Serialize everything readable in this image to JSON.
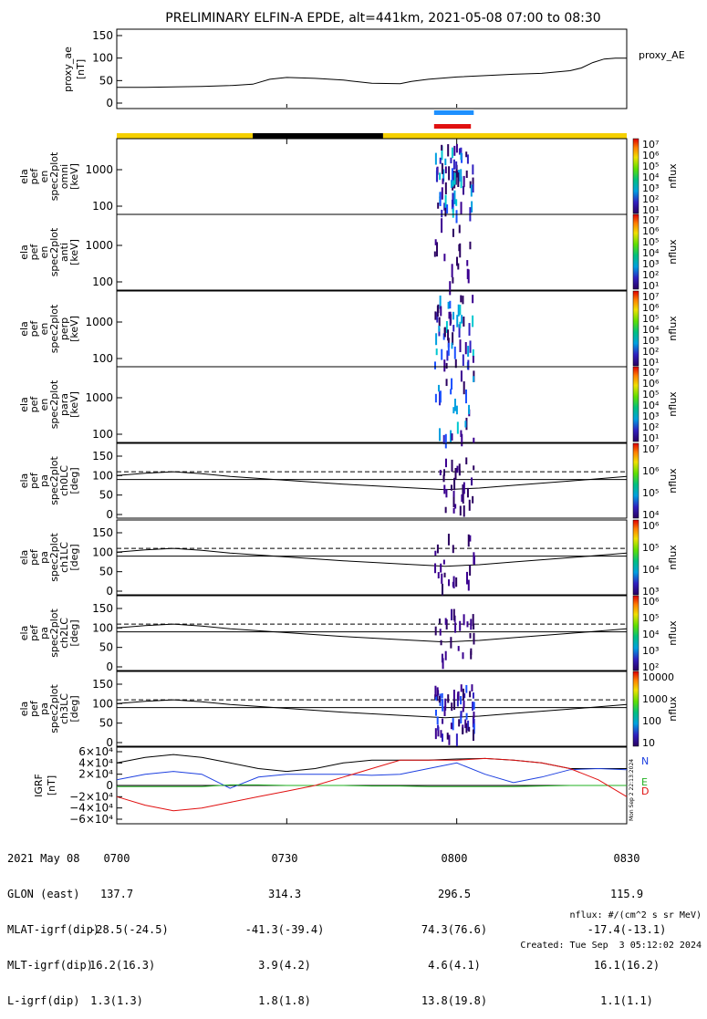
{
  "title": "PRELIMINARY ELFIN-A EPDE, alt=441km, 2021-05-08 07:00 to 08:30",
  "proxy_panel": {
    "ylabel_line1": "proxy_ae",
    "ylabel_line2": "[nT]",
    "legend": "proxy_AE",
    "yticks": [
      "150",
      "100",
      "50",
      "0"
    ],
    "ylim": [
      0,
      150
    ]
  },
  "spectra": [
    {
      "label": [
        "ela",
        "pef",
        "en",
        "spec2plot",
        "omni",
        "[keV]"
      ],
      "yticks": [
        "1000",
        "100"
      ]
    },
    {
      "label": [
        "ela",
        "pef",
        "en",
        "spec2plot",
        "anti",
        "[keV]"
      ],
      "yticks": [
        "1000",
        "100"
      ]
    },
    {
      "label": [
        "ela",
        "pef",
        "en",
        "spec2plot",
        "perp",
        "[keV]"
      ],
      "yticks": [
        "1000",
        "100"
      ]
    },
    {
      "label": [
        "ela",
        "pef",
        "en",
        "spec2plot",
        "para",
        "[keV]"
      ],
      "yticks": [
        "1000",
        "100"
      ]
    }
  ],
  "pa_panels": [
    {
      "label": [
        "ela",
        "pef",
        "pa",
        "spec2plot",
        "ch0LC",
        "[deg]"
      ],
      "yticks": [
        "150",
        "100",
        "50",
        "0"
      ]
    },
    {
      "label": [
        "ela",
        "pef",
        "pa",
        "spec2plot",
        "ch1LC",
        "[deg]"
      ],
      "yticks": [
        "150",
        "100",
        "50",
        "0"
      ]
    },
    {
      "label": [
        "ela",
        "pef",
        "pa",
        "spec2plot",
        "ch2LC",
        "[deg]"
      ],
      "yticks": [
        "150",
        "100",
        "50",
        "0"
      ]
    },
    {
      "label": [
        "ela",
        "pef",
        "pa",
        "spec2plot",
        "ch3LC",
        "[deg]"
      ],
      "yticks": [
        "150",
        "100",
        "50",
        "0"
      ]
    }
  ],
  "igrf_panel": {
    "label": [
      "IGRF",
      "[nT]"
    ],
    "yticks": [
      "6×10⁴",
      "4×10⁴",
      "2×10⁴",
      "0",
      "−2×10⁴",
      "−4×10⁴",
      "−6×10⁴"
    ],
    "components": [
      "N",
      "E",
      "D"
    ],
    "component_colors": [
      "#1e40e0",
      "#22b022",
      "#e01010"
    ],
    "stamp": "Mon Sep 2 22:13:2024"
  },
  "colorbars": [
    {
      "unit": "nflux",
      "ticks": [
        "10⁷",
        "10⁶",
        "10⁵",
        "10⁴",
        "10³",
        "10²",
        "10¹"
      ]
    },
    {
      "unit": "nflux",
      "ticks": [
        "10⁷",
        "10⁶",
        "10⁵",
        "10⁴",
        "10³",
        "10²",
        "10¹"
      ]
    },
    {
      "unit": "nflux",
      "ticks": [
        "10⁷",
        "10⁶",
        "10⁵",
        "10⁴",
        "10³",
        "10²",
        "10¹"
      ]
    },
    {
      "unit": "nflux",
      "ticks": [
        "10⁷",
        "10⁶",
        "10⁵",
        "10⁴",
        "10³",
        "10²",
        "10¹"
      ]
    },
    {
      "unit": "nflux",
      "ticks": [
        "10⁷",
        "10⁶",
        "10⁵",
        "10⁴"
      ]
    },
    {
      "unit": "nflux",
      "ticks": [
        "10⁶",
        "10⁵",
        "10⁴",
        "10³"
      ]
    },
    {
      "unit": "nflux",
      "ticks": [
        "10⁶",
        "10⁵",
        "10⁴",
        "10³",
        "10²"
      ]
    },
    {
      "unit": "nflux",
      "ticks": [
        "10000",
        "1000",
        "100",
        "10"
      ]
    }
  ],
  "footer": {
    "row_labels": [
      "2021 May 08",
      "GLON (east)",
      "MLAT-igrf(dip)",
      "MLT-igrf(dip)",
      "L-igrf(dip)"
    ],
    "columns": [
      [
        "0700",
        "137.7",
        "-28.5(-24.5)",
        "16.2(16.3)",
        "1.3(1.3)"
      ],
      [
        "0730",
        "314.3",
        "-41.3(-39.4)",
        "3.9(4.2)",
        "1.8(1.8)"
      ],
      [
        "0800",
        "296.5",
        "74.3(76.6)",
        "4.6(4.1)",
        "13.8(19.8)"
      ],
      [
        "0830",
        "115.9",
        "-17.4(-13.1)",
        "16.1(16.2)",
        "1.1(1.1)"
      ]
    ],
    "note_line1": "nflux: #/(cm^2 s sr MeV)",
    "note_line2": "Created: Tue Sep  3 05:12:02 2024"
  },
  "chart_data": {
    "type": "line",
    "time_range": [
      "2021-05-08 07:00",
      "2021-05-08 08:30"
    ],
    "xticks": [
      "0700",
      "0730",
      "0800",
      "0830"
    ],
    "proxy_ae": {
      "t_min": [
        0,
        5,
        10,
        15,
        20,
        24,
        27,
        30,
        35,
        40,
        45,
        50,
        52,
        55,
        60,
        65,
        70,
        75,
        80,
        82,
        84,
        86,
        88,
        90
      ],
      "values": [
        35,
        35,
        36,
        37,
        39,
        42,
        53,
        57,
        55,
        51,
        44,
        43,
        48,
        53,
        58,
        61,
        64,
        66,
        72,
        78,
        90,
        98,
        100,
        100
      ],
      "ylim": [
        0,
        150
      ]
    },
    "pa_loss_cone_deg": {
      "t_min": [
        0,
        5,
        10,
        15,
        20,
        30,
        40,
        50,
        58,
        64,
        70,
        80,
        90
      ],
      "values": [
        100,
        106,
        110,
        105,
        98,
        88,
        78,
        70,
        64,
        68,
        75,
        86,
        98
      ]
    },
    "pa_reference_lines_deg": [
      90,
      110
    ],
    "igrf_nT": {
      "t_min": [
        0,
        5,
        10,
        15,
        20,
        25,
        30,
        35,
        40,
        45,
        50,
        55,
        60,
        65,
        70,
        75,
        80,
        85,
        90
      ],
      "N": [
        10000,
        20000,
        25000,
        20000,
        -5000,
        15000,
        20000,
        20000,
        20000,
        18000,
        20000,
        30000,
        40000,
        20000,
        5000,
        15000,
        28000,
        30000,
        28000
      ],
      "E": [
        -2000,
        -2000,
        -2000,
        -2000,
        1000,
        1000,
        0,
        0,
        0,
        -1000,
        -1000,
        -2000,
        -2000,
        -2000,
        -2000,
        -1000,
        0,
        0,
        0
      ],
      "D": [
        -20000,
        -35000,
        -45000,
        -40000,
        -30000,
        -20000,
        -10000,
        0,
        15000,
        30000,
        45000,
        45000,
        45000,
        48000,
        45000,
        40000,
        30000,
        10000,
        -20000
      ],
      "T": [
        40000,
        50000,
        55000,
        50000,
        40000,
        30000,
        25000,
        30000,
        40000,
        45000,
        45000,
        45000,
        47000,
        48000,
        45000,
        40000,
        30000,
        30000,
        30000
      ],
      "ylim": [
        -60000,
        60000
      ]
    },
    "status_bar_segments": [
      {
        "t_start": 0,
        "t_end": 24,
        "color": "#f5d000"
      },
      {
        "t_start": 24,
        "t_end": 47,
        "color": "#000000"
      },
      {
        "t_start": 47,
        "t_end": 90,
        "color": "#f5d000"
      }
    ],
    "science_zone_markers": [
      {
        "t_start": 56,
        "t_end": 63,
        "color": "#1e90ff"
      },
      {
        "t_start": 56,
        "t_end": 62.5,
        "color": "#e01010"
      }
    ]
  }
}
